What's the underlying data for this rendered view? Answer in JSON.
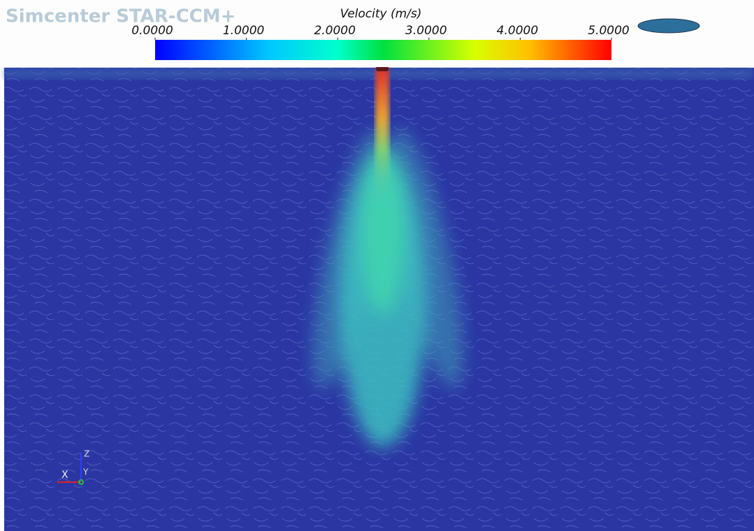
{
  "brand": "Simcenter STAR-CCM+",
  "legend": {
    "title": "Velocity (m/s)",
    "lim": [
      0,
      5
    ],
    "ticks": [
      {
        "value": 0,
        "label": "0.0000"
      },
      {
        "value": 1,
        "label": "1.0000"
      },
      {
        "value": 2,
        "label": "2.0000"
      },
      {
        "value": 3,
        "label": "3.0000"
      },
      {
        "value": 4,
        "label": "4.0000"
      },
      {
        "value": 5,
        "label": "5.0000"
      }
    ]
  },
  "axes_triad": {
    "z": "Z",
    "x": "X",
    "y": "Y"
  }
}
